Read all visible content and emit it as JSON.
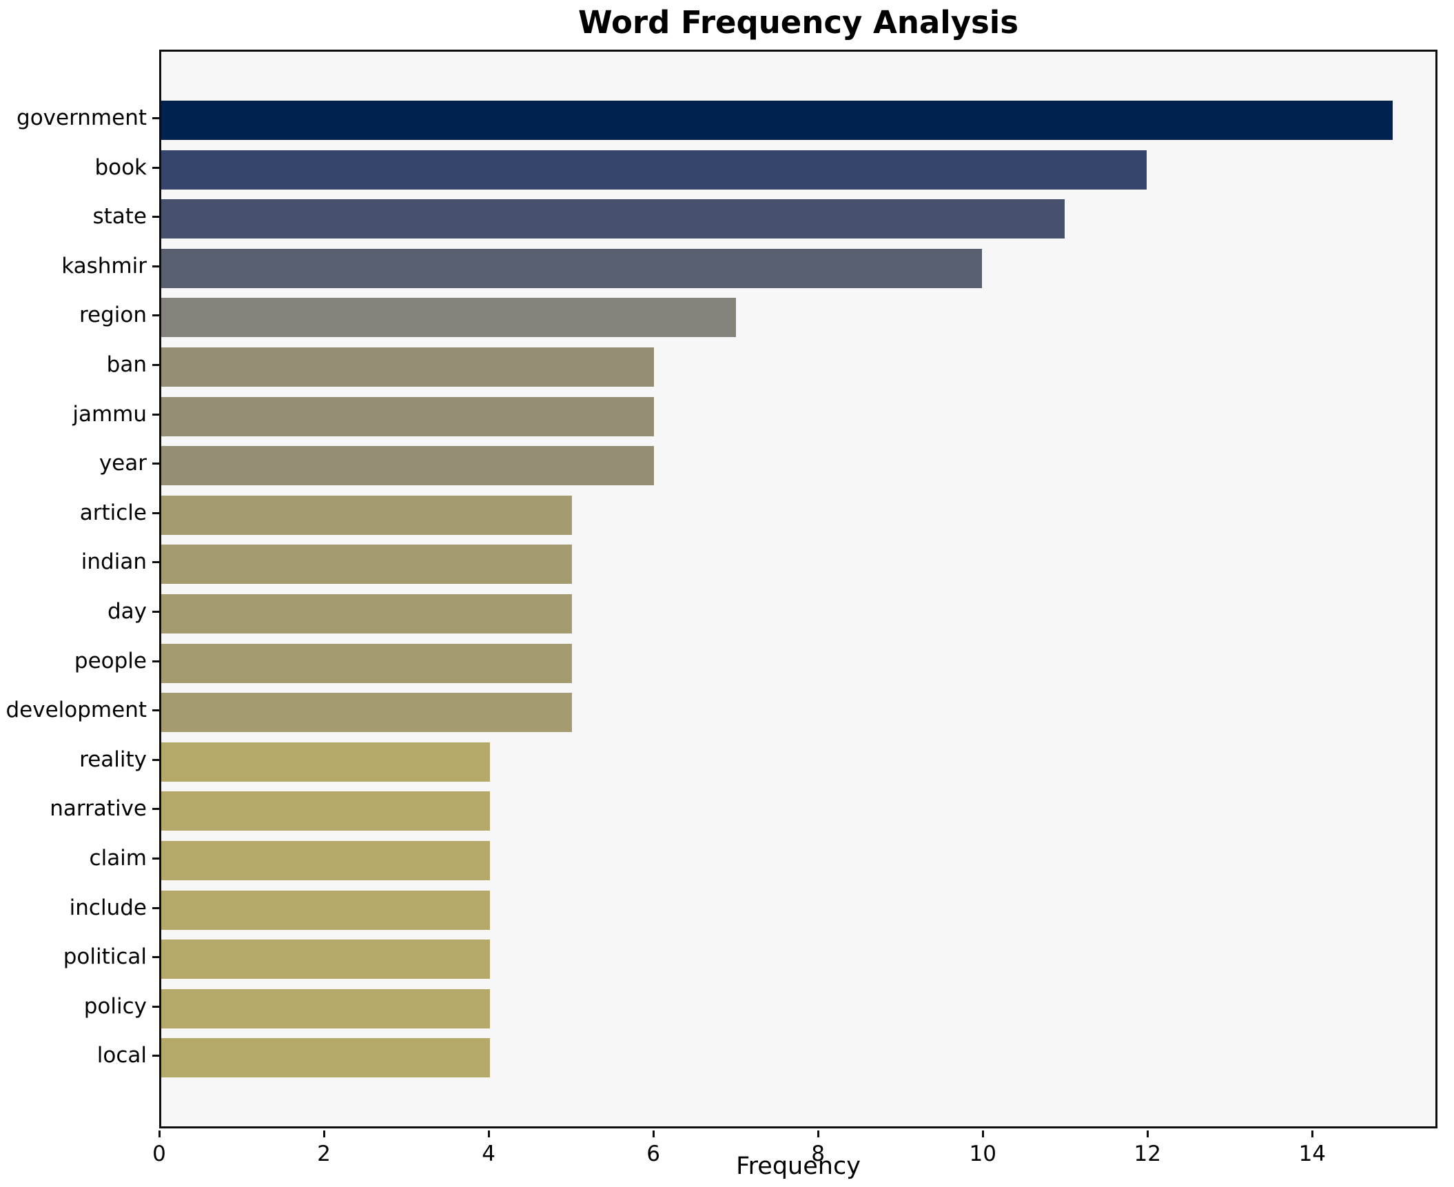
{
  "chart_data": {
    "type": "bar",
    "orientation": "horizontal",
    "title": "Word Frequency Analysis",
    "xlabel": "Frequency",
    "ylabel": "",
    "categories": [
      "government",
      "book",
      "state",
      "kashmir",
      "region",
      "ban",
      "jammu",
      "year",
      "article",
      "indian",
      "day",
      "people",
      "development",
      "reality",
      "narrative",
      "claim",
      "include",
      "political",
      "policy",
      "local"
    ],
    "values": [
      15,
      12,
      11,
      10,
      7,
      6,
      6,
      6,
      5,
      5,
      5,
      5,
      5,
      4,
      4,
      4,
      4,
      4,
      4,
      4
    ],
    "bar_colors": [
      "#01224f",
      "#35456b",
      "#47506c",
      "#585f6f",
      "#84827b",
      "#948e75",
      "#948e75",
      "#948e75",
      "#a49c70",
      "#a49c70",
      "#a49c70",
      "#a49c70",
      "#a49c70",
      "#b5a96a",
      "#b5a96a",
      "#b5a96a",
      "#b5a96a",
      "#b5a96a",
      "#b5a96a",
      "#b5a96a"
    ],
    "xlim": [
      0,
      15.52
    ],
    "xticks": [
      0,
      2,
      4,
      6,
      8,
      10,
      12,
      14
    ],
    "grid": "off",
    "legend": "none",
    "plot_background": "#f7f7f8",
    "figure_background": "#ffffff",
    "axis_color": "#0e0e0e"
  }
}
